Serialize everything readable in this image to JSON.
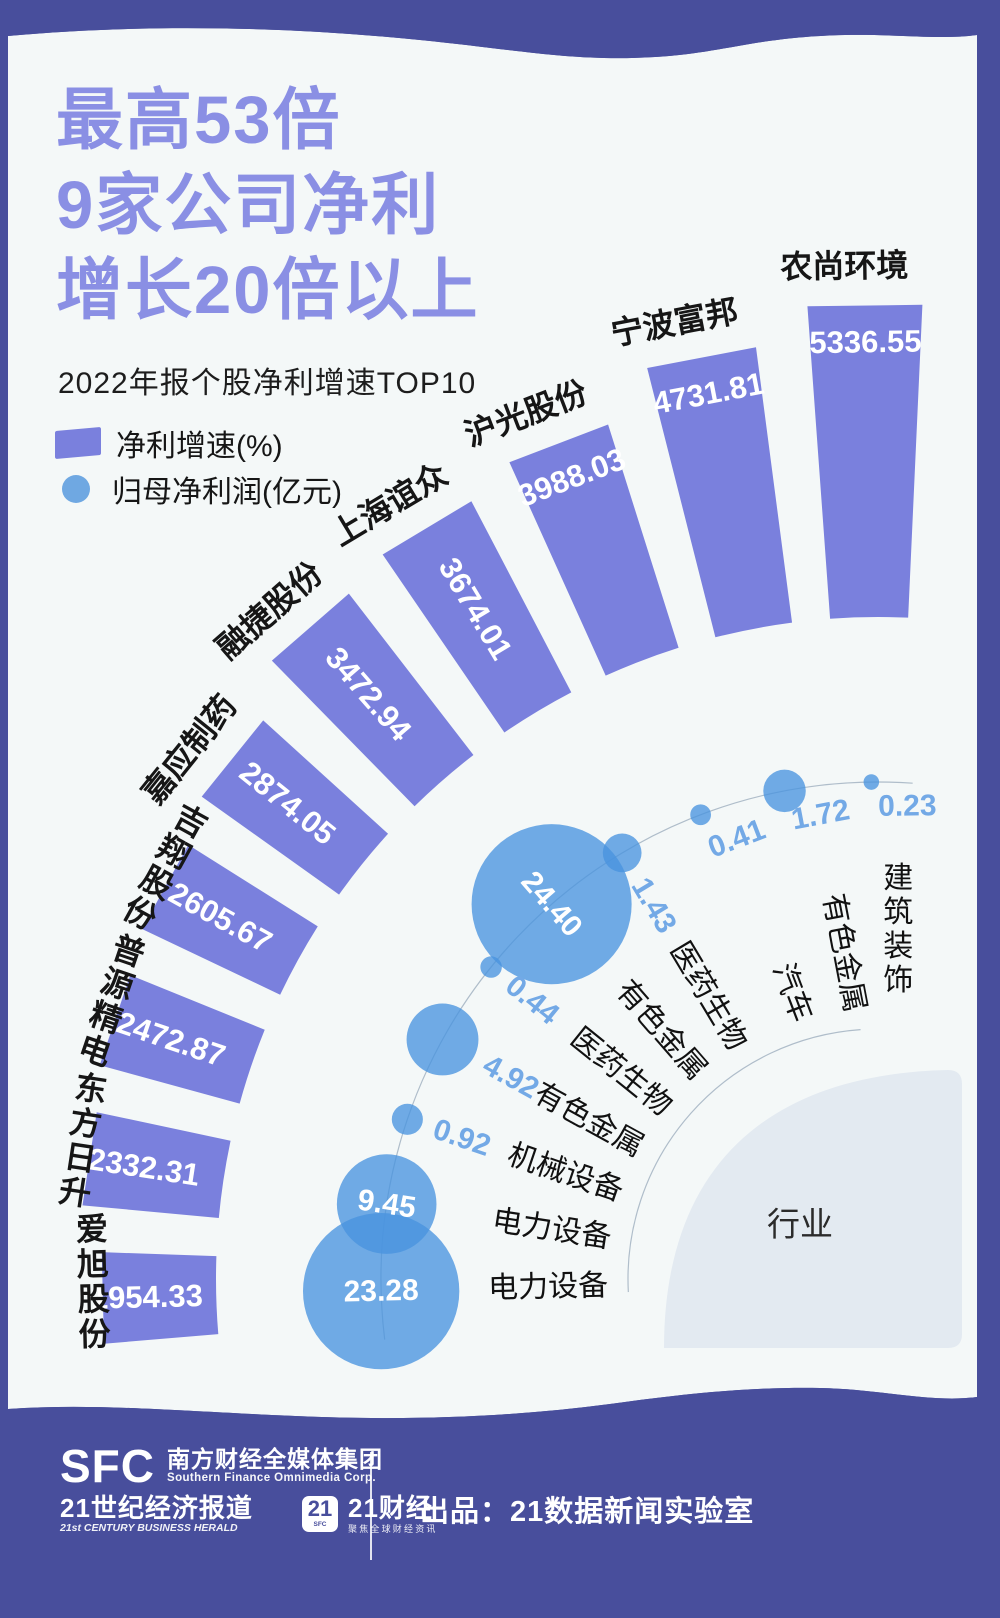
{
  "title_lines": [
    "最高53倍",
    "9家公司净利",
    "增长20倍以上"
  ],
  "subtitle": "2022年报个股净利增速TOP10",
  "legend": {
    "growth_label": "净利增速(%)",
    "profit_label": "归母净利润(亿元)"
  },
  "center_label": "行业",
  "colors": {
    "frame": "#484E9C",
    "card_bg": "#F4F8F8",
    "bar": "#7A80DD",
    "title": "#8A8FE4",
    "bubble": "#4994DF",
    "bubble_text_out": "#73A9E6",
    "bubble_text_in": "#FFFFFF",
    "bar_text": "#FFFFFF",
    "name_text": "#161616",
    "industry_text": "#111111",
    "arc_line": "#AFBDCA",
    "center_disc": "#E3EAF1"
  },
  "chart_data": {
    "type": "radial_bar_bubble",
    "title": "2022年报个股净利增速TOP10",
    "series": [
      {
        "name": "净利增速(%)",
        "type": "bar",
        "color": "#7A80DD"
      },
      {
        "name": "归母净利润(亿元)",
        "type": "bubble",
        "color": "#4994DF"
      }
    ],
    "ring_labels": "行业",
    "companies": [
      {
        "rank": 1,
        "name": "农尚环境",
        "growth_pct": 5336.55,
        "profit_yi": 0.23,
        "industry": "建筑装饰"
      },
      {
        "rank": 2,
        "name": "宁波富邦",
        "growth_pct": 4731.81,
        "profit_yi": 1.72,
        "industry": "有色金属"
      },
      {
        "rank": 3,
        "name": "沪光股份",
        "growth_pct": 3988.03,
        "profit_yi": 0.41,
        "industry": "汽车"
      },
      {
        "rank": 4,
        "name": "上海谊众",
        "growth_pct": 3674.01,
        "profit_yi": 1.43,
        "industry": "医药生物"
      },
      {
        "rank": 5,
        "name": "融捷股份",
        "growth_pct": 3472.94,
        "profit_yi": 24.4,
        "industry": "有色金属"
      },
      {
        "rank": 6,
        "name": "嘉应制药",
        "growth_pct": 2874.05,
        "profit_yi": 0.44,
        "industry": "医药生物"
      },
      {
        "rank": 7,
        "name": "吉翔股份",
        "growth_pct": 2605.67,
        "profit_yi": 4.92,
        "industry": "有色金属"
      },
      {
        "rank": 8,
        "name": "普源精电",
        "growth_pct": 2472.87,
        "profit_yi": 0.92,
        "industry": "机械设备"
      },
      {
        "rank": 9,
        "name": "东方日升",
        "growth_pct": 2332.31,
        "profit_yi": 9.45,
        "industry": "电力设备"
      },
      {
        "rank": 10,
        "name": "爱旭股份",
        "growth_pct": 1954.33,
        "profit_yi": 23.28,
        "industry": "电力设备"
      }
    ]
  },
  "footer": {
    "sfc_logo": "SFC",
    "org_cn": "南方财经全媒体集团",
    "org_en": "Southern Finance Omnimedia Corp.",
    "herald_cn": "21世纪经济报道",
    "herald_en": "21st CENTURY BUSINESS HERALD",
    "box21": "21",
    "box21_sub": "SFC",
    "cj_cn": "21财经",
    "cj_sub": "聚焦全球财经资讯",
    "credit": "出品：21数据新闻实验室"
  }
}
